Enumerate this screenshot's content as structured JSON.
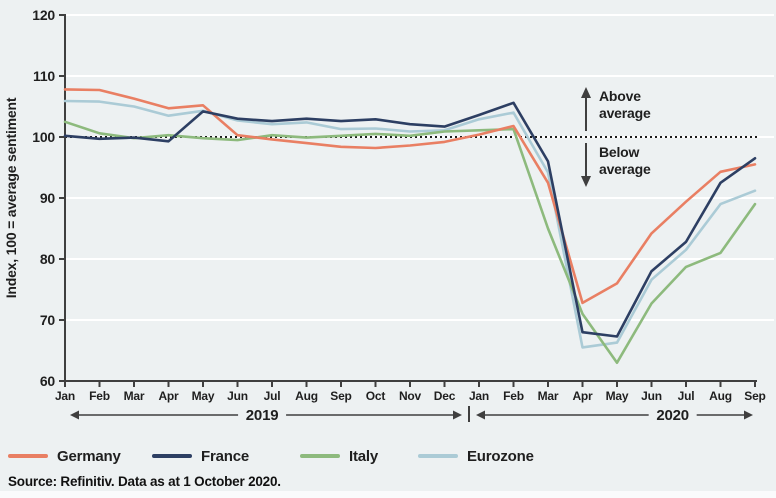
{
  "chart_data": {
    "type": "line",
    "title": "",
    "ylabel": "Index, 100 = average sentiment",
    "ylim": [
      60,
      120
    ],
    "yticks": [
      60,
      70,
      80,
      90,
      100,
      110,
      120
    ],
    "grid": "horizontal-white",
    "legend_position": "bottom",
    "x_labels": [
      "Jan",
      "Feb",
      "Mar",
      "Apr",
      "May",
      "Jun",
      "Jul",
      "Aug",
      "Sep",
      "Oct",
      "Nov",
      "Dec",
      "Jan",
      "Feb",
      "Mar",
      "Apr",
      "May",
      "Jun",
      "Jul",
      "Aug",
      "Sep"
    ],
    "year_groups": [
      {
        "label": "2019",
        "start_index": 0,
        "end_index": 11
      },
      {
        "label": "2020",
        "start_index": 12,
        "end_index": 20
      }
    ],
    "reference_line": {
      "value": 100,
      "style": "dotted",
      "color": "#1a1a1a"
    },
    "annotations": [
      {
        "text_line1": "Above",
        "text_line2": "average",
        "arrow": "up"
      },
      {
        "text_line1": "Below",
        "text_line2": "average",
        "arrow": "down"
      }
    ],
    "series": [
      {
        "name": "Germany",
        "color": "#e97f63",
        "values": [
          107.8,
          107.7,
          106.3,
          104.7,
          105.2,
          100.3,
          99.6,
          99.0,
          98.4,
          98.2,
          98.6,
          99.2,
          100.4,
          101.8,
          92.5,
          72.8,
          76.0,
          84.2,
          89.4,
          94.3,
          95.5
        ]
      },
      {
        "name": "France",
        "color": "#2d3f63",
        "values": [
          100.2,
          99.7,
          99.9,
          99.3,
          104.2,
          103.0,
          102.6,
          103.0,
          102.6,
          102.9,
          102.1,
          101.7,
          103.6,
          105.6,
          96.0,
          68.0,
          67.3,
          78.0,
          82.8,
          92.5,
          96.5
        ]
      },
      {
        "name": "Italy",
        "color": "#8dba7d",
        "values": [
          102.5,
          100.6,
          99.8,
          100.3,
          99.8,
          99.5,
          100.3,
          99.9,
          100.2,
          100.5,
          100.2,
          100.9,
          101.1,
          101.3,
          85.0,
          71.0,
          63.0,
          72.7,
          78.7,
          81.0,
          89.0
        ]
      },
      {
        "name": "Eurozone",
        "color": "#abcbd6",
        "values": [
          105.9,
          105.8,
          105.0,
          103.5,
          104.3,
          102.7,
          102.1,
          102.4,
          101.3,
          101.4,
          100.9,
          101.1,
          102.9,
          104.0,
          94.2,
          65.5,
          66.3,
          76.6,
          81.5,
          89.0,
          91.2
        ]
      }
    ]
  },
  "colors": {
    "background": "#edf1f2",
    "gridline": "#ffffff",
    "axis": "#3f3f3f",
    "text": "#1f1f1f"
  },
  "source": "Source: Refinitiv. Data as at 1 October 2020."
}
